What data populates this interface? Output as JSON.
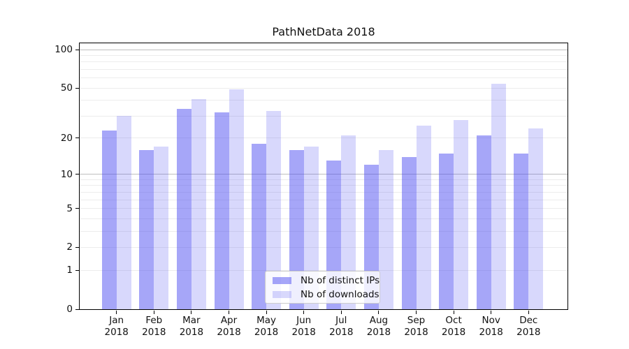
{
  "title": "PathNetData 2018",
  "legend": {
    "items": [
      {
        "label": "Nb of distinct IPs",
        "color": "rgba(70,70,240,0.48)"
      },
      {
        "label": "Nb of downloads",
        "color": "rgba(70,70,240,0.21)"
      }
    ]
  },
  "chart_data": {
    "type": "bar",
    "title": "PathNetData 2018",
    "x_categories": [
      "Jan",
      "Feb",
      "Mar",
      "Apr",
      "May",
      "Jun",
      "Jul",
      "Aug",
      "Sep",
      "Oct",
      "Nov",
      "Dec"
    ],
    "x_year": "2018",
    "series": [
      {
        "name": "Nb of distinct IPs",
        "slug": "distinct-ips",
        "color": "rgba(70,70,240,0.48)",
        "values": [
          23,
          16,
          34,
          32,
          18,
          16,
          13,
          12,
          14,
          15,
          21,
          15
        ]
      },
      {
        "name": "Nb of downloads",
        "slug": "downloads",
        "color": "rgba(70,70,240,0.21)",
        "values": [
          30,
          17,
          41,
          49,
          33,
          17,
          21,
          16,
          25,
          28,
          54,
          24
        ]
      }
    ],
    "y_scale": "log1p",
    "ylim": [
      0,
      112
    ],
    "y_ticks": [
      100,
      50,
      20,
      10,
      5,
      2,
      1,
      0
    ],
    "y_minor_gridlines": [
      1,
      2,
      3,
      4,
      5,
      6,
      7,
      8,
      9,
      20,
      30,
      40,
      50,
      60,
      70,
      80,
      90
    ],
    "y_major_gridlines": [
      10,
      100
    ],
    "grid": "horizontal",
    "legend_position": "lower-center-inside",
    "xlabel": "",
    "ylabel": ""
  },
  "colors": {
    "background": "#ffffff",
    "axis": "#000000",
    "grid_minor": "#ececec",
    "grid_major": "#bfbfbf",
    "bar_dark": "rgba(70,70,240,0.48)",
    "bar_light": "rgba(70,70,240,0.21)",
    "text": "#111111"
  }
}
